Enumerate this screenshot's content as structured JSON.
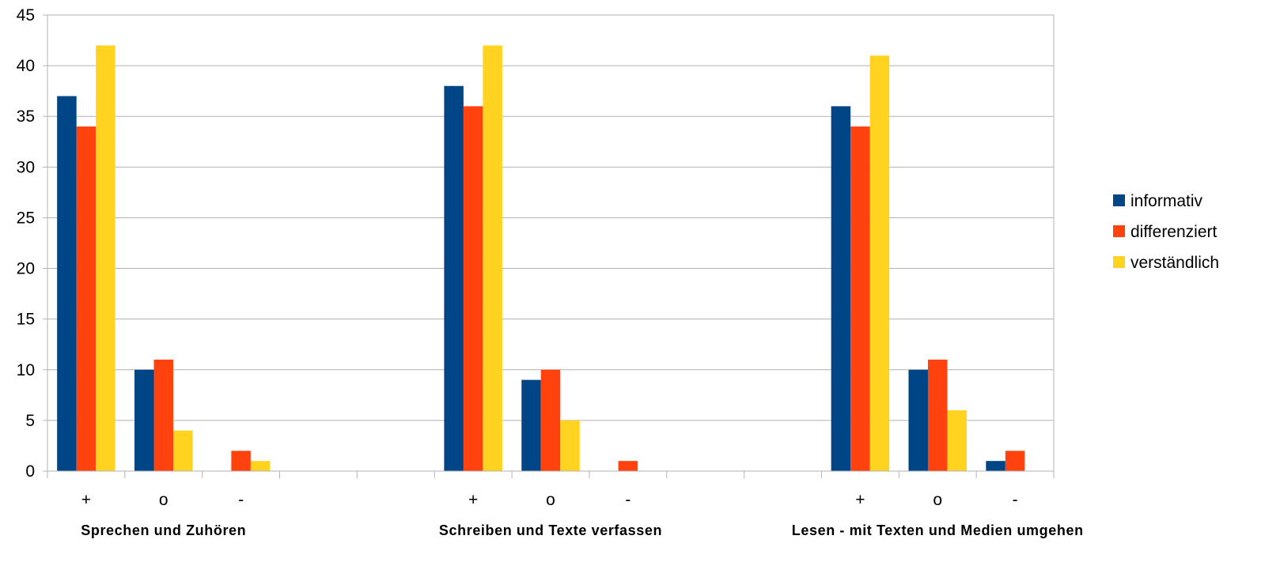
{
  "chart_data": {
    "type": "bar",
    "ylim": [
      0,
      45
    ],
    "yticks": [
      0,
      5,
      10,
      15,
      20,
      25,
      30,
      35,
      40,
      45
    ],
    "grid": true,
    "legend_position": "right",
    "groups": [
      {
        "label": "Sprechen und Zuhören",
        "categories": [
          "+",
          "o",
          "-"
        ],
        "series": [
          {
            "name": "informativ",
            "values": [
              37,
              10,
              0
            ]
          },
          {
            "name": "differenziert",
            "values": [
              34,
              11,
              2
            ]
          },
          {
            "name": "verständlich",
            "values": [
              42,
              4,
              1
            ]
          }
        ]
      },
      {
        "label": "Schreiben und Texte verfassen",
        "categories": [
          "+",
          "o",
          "-"
        ],
        "series": [
          {
            "name": "informativ",
            "values": [
              38,
              9,
              0
            ]
          },
          {
            "name": "differenziert",
            "values": [
              36,
              10,
              1
            ]
          },
          {
            "name": "verständlich",
            "values": [
              42,
              5,
              0
            ]
          }
        ]
      },
      {
        "label": "Lesen - mit Texten und Medien umgehen",
        "categories": [
          "+",
          "o",
          "-"
        ],
        "series": [
          {
            "name": "informativ",
            "values": [
              36,
              10,
              1
            ]
          },
          {
            "name": "differenziert",
            "values": [
              34,
              11,
              2
            ]
          },
          {
            "name": "verständlich",
            "values": [
              41,
              6,
              0
            ]
          }
        ]
      }
    ],
    "legend": [
      {
        "name": "informativ",
        "color": "#004586"
      },
      {
        "name": "differenziert",
        "color": "#ff420e"
      },
      {
        "name": "verständlich",
        "color": "#ffd320"
      }
    ]
  }
}
